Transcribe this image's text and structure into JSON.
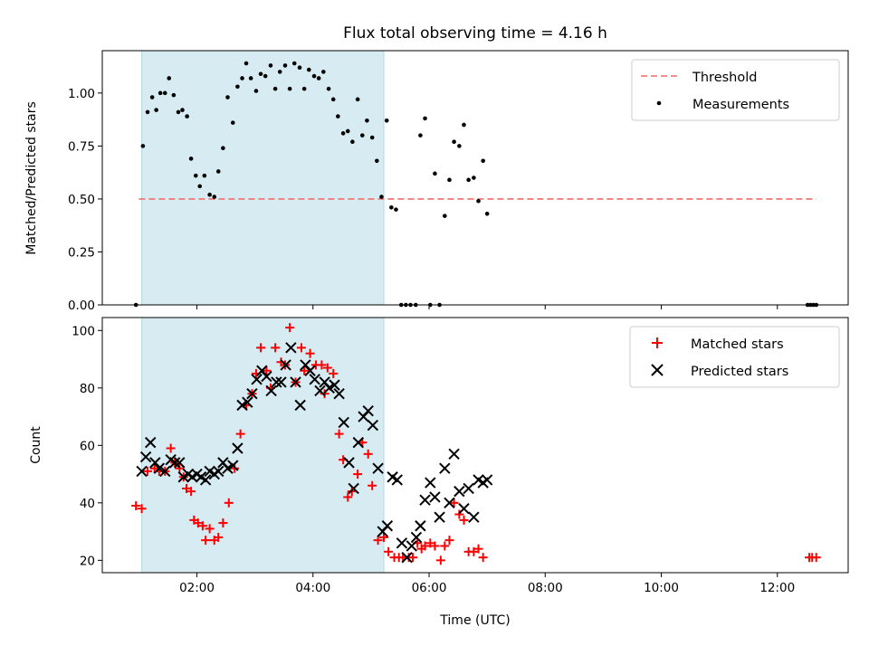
{
  "chart_data": {
    "title": "Flux total observing time = 4.16 h",
    "x_axis": {
      "label": "Time (UTC)",
      "range_hours": [
        0.37,
        13.22
      ],
      "ticks": [
        {
          "value": 2,
          "label": "02:00"
        },
        {
          "value": 4,
          "label": "04:00"
        },
        {
          "value": 6,
          "label": "06:00"
        },
        {
          "value": 8,
          "label": "08:00"
        },
        {
          "value": 10,
          "label": "10:00"
        },
        {
          "value": 12,
          "label": "12:00"
        }
      ]
    },
    "shaded_interval_hours": [
      1.05,
      5.22
    ],
    "panels": [
      {
        "type": "scatter",
        "ylabel": "Matched/Predicted stars",
        "ylim": [
          0,
          1.2
        ],
        "yticks": [
          {
            "value": 0,
            "label": "0.00"
          },
          {
            "value": 0.25,
            "label": "0.25"
          },
          {
            "value": 0.5,
            "label": "0.50"
          },
          {
            "value": 0.75,
            "label": "0.75"
          },
          {
            "value": 1.0,
            "label": "1.00"
          }
        ],
        "threshold": {
          "name": "Threshold",
          "value": 0.5,
          "x_range": [
            1.0,
            12.67
          ],
          "color": "#f08080"
        },
        "series": [
          {
            "name": "Measurements",
            "color": "#000000",
            "marker": "dot",
            "x": [
              0.95,
              1.07,
              1.15,
              1.23,
              1.3,
              1.37,
              1.45,
              1.52,
              1.6,
              1.68,
              1.75,
              1.83,
              1.9,
              1.98,
              2.05,
              2.13,
              2.22,
              2.3,
              2.37,
              2.45,
              2.53,
              2.62,
              2.7,
              2.78,
              2.85,
              2.93,
              3.02,
              3.1,
              3.18,
              3.27,
              3.35,
              3.43,
              3.52,
              3.6,
              3.68,
              3.77,
              3.85,
              3.93,
              4.02,
              4.1,
              4.18,
              4.27,
              4.35,
              4.43,
              4.52,
              4.6,
              4.68,
              4.77,
              4.85,
              4.93,
              5.02,
              5.1,
              5.18,
              5.27,
              5.35,
              5.43,
              5.52,
              5.6,
              5.68,
              5.77,
              5.85,
              5.93,
              6.02,
              6.1,
              6.18,
              6.27,
              6.35,
              6.43,
              6.52,
              6.6,
              6.68,
              6.77,
              6.85,
              6.93,
              7.0,
              12.52,
              12.57,
              12.62,
              12.67
            ],
            "y": [
              0.0,
              0.75,
              0.91,
              0.98,
              0.92,
              1.0,
              1.0,
              1.07,
              0.99,
              0.91,
              0.92,
              0.89,
              0.69,
              0.61,
              0.56,
              0.61,
              0.52,
              0.51,
              0.63,
              0.74,
              0.98,
              0.86,
              1.03,
              1.07,
              1.14,
              1.07,
              1.01,
              1.09,
              1.08,
              1.13,
              1.02,
              1.1,
              1.13,
              1.02,
              1.14,
              1.12,
              1.02,
              1.11,
              1.08,
              1.07,
              1.1,
              1.02,
              0.97,
              0.89,
              0.81,
              0.82,
              0.77,
              0.97,
              0.8,
              0.87,
              0.79,
              0.68,
              0.51,
              0.87,
              0.46,
              0.45,
              0.0,
              0.0,
              0.0,
              0.0,
              0.8,
              0.88,
              0.0,
              0.62,
              0.0,
              0.42,
              0.59,
              0.77,
              0.75,
              0.85,
              0.59,
              0.6,
              0.49,
              0.68,
              0.43,
              0.0,
              0.0,
              0.0,
              0.0
            ]
          }
        ]
      },
      {
        "type": "scatter",
        "ylabel": "Count",
        "ylim": [
          15.7,
          104.5
        ],
        "yticks": [
          {
            "value": 20,
            "label": "20"
          },
          {
            "value": 40,
            "label": "40"
          },
          {
            "value": 60,
            "label": "60"
          },
          {
            "value": 80,
            "label": "80"
          },
          {
            "value": 100,
            "label": "100"
          }
        ],
        "series": [
          {
            "name": "Matched stars",
            "color": "#ff0000",
            "marker": "plus",
            "x": [
              0.95,
              1.05,
              1.15,
              1.27,
              1.35,
              1.45,
              1.55,
              1.62,
              1.7,
              1.77,
              1.82,
              1.9,
              1.95,
              2.02,
              2.1,
              2.15,
              2.22,
              2.3,
              2.37,
              2.45,
              2.55,
              2.65,
              2.75,
              2.85,
              2.95,
              3.02,
              3.1,
              3.2,
              3.27,
              3.35,
              3.45,
              3.52,
              3.6,
              3.7,
              3.8,
              3.85,
              3.95,
              4.05,
              4.15,
              4.2,
              4.25,
              4.35,
              4.45,
              4.52,
              4.6,
              4.67,
              4.77,
              4.85,
              4.95,
              5.02,
              5.12,
              5.22,
              5.3,
              5.4,
              5.48,
              5.55,
              5.65,
              5.72,
              5.8,
              5.87,
              5.93,
              6.02,
              6.1,
              6.2,
              6.27,
              6.35,
              6.43,
              6.52,
              6.6,
              6.68,
              6.77,
              6.85,
              6.93,
              12.55,
              12.6,
              12.67
            ],
            "y": [
              39,
              38,
              51,
              52,
              51,
              51,
              59,
              54,
              52,
              49,
              45,
              44,
              34,
              33,
              32,
              27,
              31,
              27,
              28,
              33,
              40,
              52,
              64,
              74,
              78,
              85,
              94,
              86,
              80,
              94,
              89,
              88,
              101,
              82,
              94,
              86,
              92,
              88,
              88,
              78,
              87,
              85,
              64,
              55,
              42,
              44,
              50,
              61,
              57,
              46,
              27,
              28,
              23,
              21,
              21,
              21,
              21,
              21,
              26,
              24,
              25,
              26,
              25,
              20,
              25,
              27,
              40,
              36,
              34,
              23,
              23,
              24,
              21,
              21,
              21,
              21
            ]
          },
          {
            "name": "Predicted stars",
            "color": "#000000",
            "marker": "x",
            "x": [
              1.05,
              1.12,
              1.2,
              1.28,
              1.35,
              1.45,
              1.55,
              1.62,
              1.7,
              1.77,
              1.85,
              1.92,
              2.0,
              2.07,
              2.15,
              2.22,
              2.3,
              2.37,
              2.45,
              2.53,
              2.62,
              2.7,
              2.78,
              2.87,
              2.95,
              3.03,
              3.12,
              3.2,
              3.28,
              3.37,
              3.45,
              3.53,
              3.62,
              3.7,
              3.78,
              3.87,
              3.95,
              4.03,
              4.12,
              4.2,
              4.28,
              4.37,
              4.45,
              4.53,
              4.62,
              4.7,
              4.78,
              4.87,
              4.95,
              5.03,
              5.12,
              5.2,
              5.28,
              5.37,
              5.45,
              5.53,
              5.62,
              5.7,
              5.78,
              5.85,
              5.93,
              6.02,
              6.1,
              6.18,
              6.27,
              6.35,
              6.43,
              6.52,
              6.6,
              6.68,
              6.77,
              6.85,
              6.93,
              7.0
            ],
            "y": [
              51,
              56,
              61,
              54,
              52,
              51,
              55,
              54,
              54,
              49,
              50,
              49,
              50,
              49,
              48,
              51,
              50,
              51,
              54,
              52,
              53,
              59,
              74,
              75,
              78,
              83,
              86,
              84,
              79,
              82,
              82,
              88,
              94,
              82,
              74,
              88,
              86,
              83,
              79,
              82,
              80,
              81,
              78,
              68,
              54,
              45,
              61,
              70,
              72,
              67,
              52,
              30,
              32,
              49,
              48,
              26,
              21,
              25,
              28,
              32,
              41,
              47,
              42,
              35,
              52,
              40,
              57,
              44,
              38,
              45,
              35,
              48,
              47,
              48
            ]
          }
        ]
      }
    ]
  }
}
